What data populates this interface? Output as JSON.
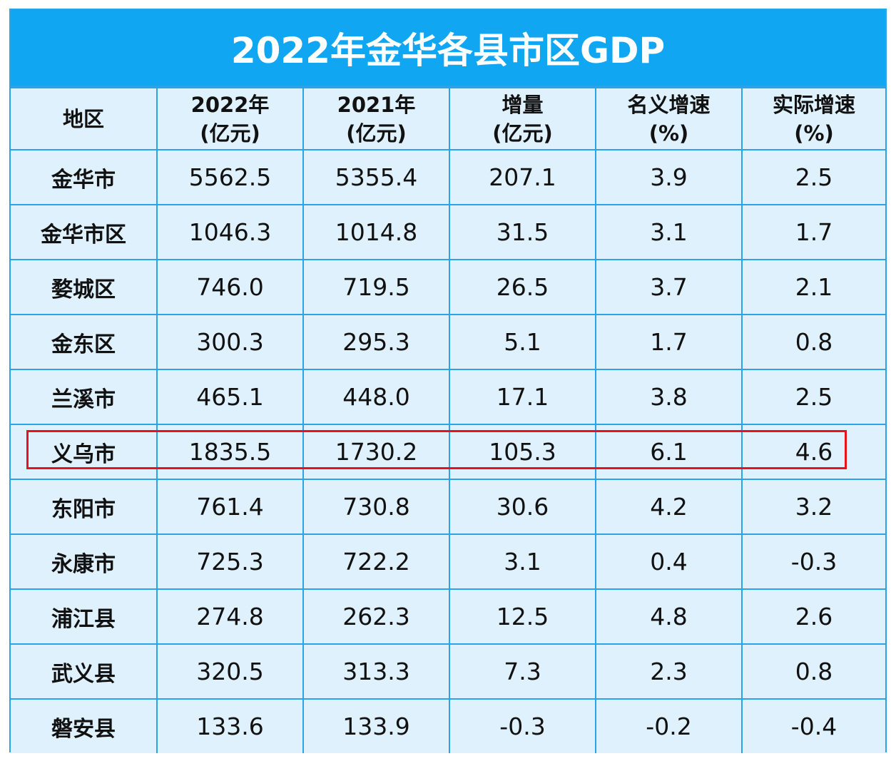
{
  "title": "2022年金华各县市区GDP",
  "headers": [
    [
      "地区"
    ],
    [
      "2022年",
      "(亿元)"
    ],
    [
      "2021年",
      "(亿元)"
    ],
    [
      "增量",
      "(亿元)"
    ],
    [
      "名义增速",
      "(%)"
    ],
    [
      "实际增速",
      "(%)"
    ]
  ],
  "rows": [
    [
      "金华市",
      "5562.5",
      "5355.4",
      "207.1",
      "3.9",
      "2.5"
    ],
    [
      "金华市区",
      "1046.3",
      "1014.8",
      "31.5",
      "3.1",
      "1.7"
    ],
    [
      "婺城区",
      "746.0",
      "719.5",
      "26.5",
      "3.7",
      "2.1"
    ],
    [
      "金东区",
      "300.3",
      "295.3",
      "5.1",
      "1.7",
      "0.8"
    ],
    [
      "兰溪市",
      "465.1",
      "448.0",
      "17.1",
      "3.8",
      "2.5"
    ],
    [
      "义乌市",
      "1835.5",
      "1730.2",
      "105.3",
      "6.1",
      "4.6"
    ],
    [
      "东阳市",
      "761.4",
      "730.8",
      "30.6",
      "4.2",
      "3.2"
    ],
    [
      "永康市",
      "725.3",
      "722.2",
      "3.1",
      "0.4",
      "-0.3"
    ],
    [
      "浦江县",
      "274.8",
      "262.3",
      "12.5",
      "4.8",
      "2.6"
    ],
    [
      "武义县",
      "320.5",
      "313.3",
      "7.3",
      "2.3",
      "0.8"
    ],
    [
      "磐安县",
      "133.6",
      "133.9",
      "-0.3",
      "-0.2",
      "-0.4"
    ]
  ],
  "highlighted_row": "义乌市",
  "colors": {
    "title_bg": "#11a6f2",
    "cell_bg": "#dff1fc",
    "border": "#2aa3e8",
    "highlight": "#e5131d"
  }
}
